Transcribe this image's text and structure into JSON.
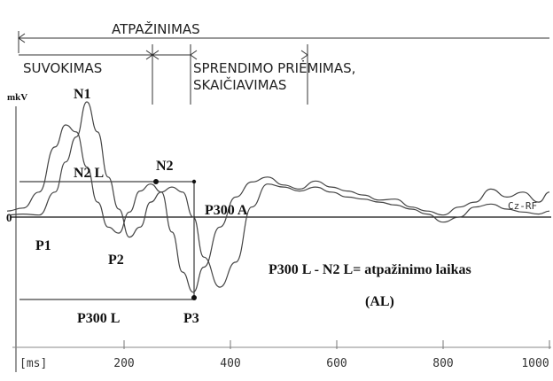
{
  "chart_data": {
    "type": "line",
    "xlim": [
      0,
      1000
    ],
    "ylim": [
      -12,
      10
    ],
    "xunit_label": "[ms]",
    "xticks": [
      200,
      400,
      600,
      800,
      1000
    ],
    "yunit_label": "mkV",
    "zero_label": "0",
    "trace_label": "Cz-RF",
    "series": [
      {
        "x": [
          -20,
          10,
          40,
          70,
          90,
          110,
          130,
          150,
          170,
          190,
          210,
          230,
          250,
          270,
          290,
          310,
          330,
          350,
          380,
          410,
          440,
          470,
          500,
          530,
          560,
          590,
          620,
          650,
          680,
          710,
          740,
          770,
          800,
          830,
          860,
          890,
          920,
          950,
          980,
          1000
        ],
        "y": [
          0.6,
          0.9,
          2.5,
          7.0,
          9.2,
          8.5,
          5.0,
          1.5,
          -1.0,
          -1.6,
          0.5,
          2.6,
          3.3,
          2.5,
          -1.5,
          -5.5,
          -7.5,
          -5.0,
          -1.0,
          2.0,
          3.5,
          4.0,
          3.2,
          2.8,
          3.6,
          3.0,
          2.6,
          2.2,
          1.7,
          1.8,
          1.0,
          0.6,
          0.2,
          1.0,
          1.5,
          2.8,
          2.0,
          2.5,
          1.5,
          2.5
        ]
      },
      {
        "x": [
          -20,
          10,
          40,
          70,
          90,
          110,
          130,
          150,
          170,
          190,
          210,
          230,
          250,
          270,
          290,
          310,
          330,
          350,
          380,
          410,
          440,
          470,
          500,
          530,
          560,
          590,
          620,
          650,
          680,
          710,
          740,
          770,
          800,
          830,
          860,
          890,
          920,
          950,
          980,
          1000
        ],
        "y": [
          0.2,
          0.3,
          0.2,
          2.5,
          5.5,
          8.0,
          11.5,
          8.5,
          4.0,
          0.8,
          -2.0,
          -1.0,
          1.5,
          2.5,
          3.0,
          2.5,
          0.0,
          -4.0,
          -7.0,
          -4.5,
          1.0,
          3.3,
          3.0,
          2.6,
          3.0,
          2.5,
          2.0,
          1.8,
          1.5,
          1.2,
          0.8,
          0.3,
          -0.5,
          0.0,
          1.0,
          1.3,
          0.8,
          0.5,
          0.3,
          0.6
        ]
      }
    ],
    "peaks": [
      {
        "label": "P1",
        "x": 5,
        "y": -0.7
      },
      {
        "label": "N1",
        "x": 100,
        "y": 11.5
      },
      {
        "label": "P2",
        "x": 185,
        "y": -1.6
      },
      {
        "label": "N2",
        "x": 258,
        "y": 3.3
      },
      {
        "label": "P3",
        "x": 335,
        "y": -7.5
      }
    ],
    "annotations": {
      "n2l": "N2 L",
      "p300a": "P300 A",
      "p300l": "P300 L",
      "formula": "P300 L - N2 L= atpažinimo laikas",
      "abbrev": "(AL)"
    },
    "phases": {
      "recognition": "ATPAŽINIMAS",
      "perception": "SUVOKIMAS",
      "decision_line1": "SPRENDIMO PRIĖMIMAS,",
      "decision_line2": "SKAIČIAVIMAS"
    }
  }
}
